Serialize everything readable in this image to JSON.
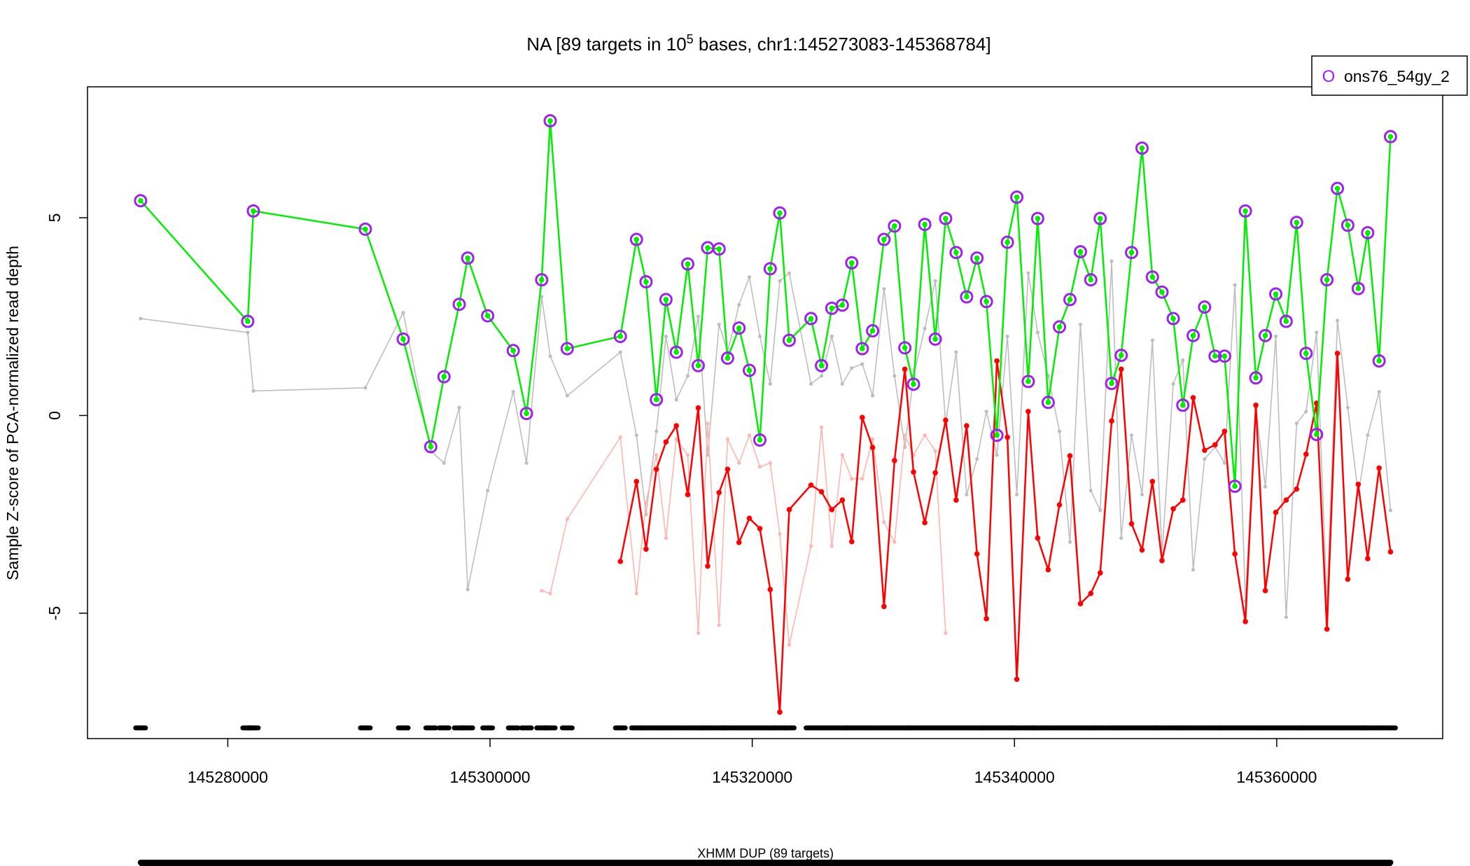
{
  "chart_data": {
    "type": "line",
    "title_prefix": "NA [89 targets in 10",
    "title_exponent": "5",
    "title_suffix": " bases, chr1:145273083-145368784]",
    "y_label": "Sample Z-score of PCA-normalized read depth",
    "x": [
      145273350,
      145281520,
      145281950,
      145290490,
      145293380,
      145295480,
      145296490,
      145297650,
      145298300,
      145299820,
      145301770,
      145302780,
      145303940,
      145304590,
      145305890,
      145309940,
      145311170,
      145311900,
      145312690,
      145313420,
      145314210,
      145315080,
      145315880,
      145316600,
      145317470,
      145318120,
      145318990,
      145319780,
      145320580,
      145321370,
      145322100,
      145322820,
      145324480,
      145325280,
      145326070,
      145326870,
      145327590,
      145328390,
      145329180,
      145330050,
      145330850,
      145331640,
      145332300,
      145333160,
      145333960,
      145334750,
      145335550,
      145336350,
      145337140,
      145337860,
      145338660,
      145339460,
      145340180,
      145341050,
      145341770,
      145342570,
      145343430,
      145344230,
      145345030,
      145345820,
      145346540,
      145347410,
      145348140,
      145348930,
      145349730,
      145350520,
      145351250,
      145352110,
      145352840,
      145353630,
      145354500,
      145355300,
      145356020,
      145356810,
      145357610,
      145358410,
      145359130,
      145359930,
      145360720,
      145361520,
      145362240,
      145363040,
      145363830,
      145364630,
      145365420,
      145366220,
      145366940,
      145367810,
      145368680
    ],
    "series": [
      {
        "color": "#bebebe",
        "values": [
          2.45,
          2.1,
          0.62,
          0.7,
          2.6,
          -0.9,
          -1.2,
          0.2,
          -4.4,
          -1.9,
          0.6,
          -1.2,
          3.0,
          1.5,
          0.5,
          1.6,
          -0.5,
          -2.5,
          -0.4,
          2.0,
          0.4,
          1.0,
          2.5,
          -1.0,
          2.3,
          1.6,
          2.8,
          3.5,
          2.0,
          0.8,
          3.4,
          3.6,
          0.8,
          1.0,
          2.0,
          0.8,
          1.2,
          1.3,
          0.5,
          3.2,
          1.0,
          -0.8,
          1.0,
          2.2,
          3.4,
          -0.2,
          1.6,
          -2.0,
          -1.1,
          0.1,
          -1.0,
          2.0,
          -2.0,
          3.6,
          2.1,
          1.0,
          -0.4,
          -3.2,
          2.3,
          -1.9,
          -2.4,
          3.9,
          -3.1,
          -0.5,
          -2.0,
          1.9,
          -3.5,
          0.8,
          1.4,
          -3.9,
          -1.1,
          -0.8,
          -1.2,
          3.3,
          -4.7,
          0.2,
          -1.8,
          2.0,
          -5.1,
          -0.2,
          0.1,
          2.1,
          -4.7,
          2.4,
          0.2,
          -2.0,
          -0.5,
          0.6,
          -2.4
        ]
      },
      {
        "color": "#ffb6b0",
        "values": [
          null,
          null,
          null,
          null,
          null,
          null,
          null,
          null,
          null,
          null,
          null,
          null,
          -4.43,
          -4.5,
          -2.62,
          -0.55,
          -4.5,
          -2.2,
          -1.0,
          -3.1,
          -0.6,
          -1.0,
          -5.5,
          -0.2,
          -5.3,
          -0.6,
          -1.2,
          -0.5,
          -1.3,
          -1.2,
          -3.0,
          -5.8,
          -3.3,
          -0.3,
          -3.3,
          -1.0,
          -1.6,
          -1.6,
          -0.6,
          -2.7,
          -3.2,
          -0.5,
          -1.0,
          -0.5,
          -0.9,
          -5.5,
          null,
          null,
          null,
          null,
          null,
          null,
          null,
          null,
          null,
          null,
          null,
          null,
          null,
          null,
          null,
          null,
          null,
          null,
          null,
          null,
          null,
          null,
          null,
          null,
          null,
          null,
          null,
          null,
          null,
          null,
          null,
          null,
          null,
          null,
          null,
          null,
          null,
          null,
          null,
          null,
          null,
          null,
          null
        ]
      },
      {
        "color": "#ff0000",
        "values": [
          null,
          null,
          null,
          null,
          null,
          null,
          null,
          null,
          null,
          null,
          null,
          null,
          null,
          null,
          null,
          -3.69,
          -1.67,
          -3.38,
          -1.36,
          -0.67,
          -0.26,
          -2.0,
          0.19,
          -3.81,
          -1.95,
          -1.36,
          -3.21,
          -2.6,
          -2.86,
          -4.4,
          -7.5,
          -2.38,
          -1.76,
          -1.93,
          -2.38,
          -2.14,
          -3.19,
          -0.05,
          -0.81,
          -4.83,
          -1.14,
          1.17,
          -1.43,
          -2.71,
          -1.45,
          -0.12,
          -2.14,
          -0.26,
          -3.5,
          -5.14,
          1.38,
          -0.55,
          -6.67,
          0.1,
          -3.1,
          -3.9,
          -2.26,
          -1.02,
          -4.76,
          -4.5,
          -3.98,
          -0.14,
          1.17,
          -2.74,
          -3.4,
          -1.67,
          -3.67,
          -2.36,
          -2.14,
          0.45,
          -0.88,
          -0.74,
          -0.4,
          -3.5,
          -5.21,
          0.26,
          -4.43,
          -2.45,
          -2.14,
          -1.86,
          -0.98,
          0.31,
          -5.4,
          1.57,
          -4.14,
          -1.74,
          -3.62,
          -1.33,
          -3.45
        ]
      },
      {
        "color": "#00ee00",
        "highlight": true,
        "values": [
          5.43,
          2.38,
          5.17,
          4.71,
          1.93,
          -0.79,
          0.98,
          2.81,
          3.98,
          2.52,
          1.64,
          0.05,
          3.43,
          7.45,
          1.69,
          2.0,
          4.45,
          3.38,
          0.4,
          2.93,
          1.6,
          3.83,
          1.26,
          4.24,
          4.21,
          1.45,
          2.21,
          1.14,
          -0.62,
          3.71,
          5.12,
          1.9,
          2.45,
          1.26,
          2.71,
          2.79,
          3.86,
          1.69,
          2.14,
          4.45,
          4.79,
          1.71,
          0.79,
          4.83,
          1.93,
          4.98,
          4.12,
          3.0,
          3.98,
          2.88,
          -0.5,
          4.38,
          5.52,
          0.86,
          4.98,
          0.33,
          2.24,
          2.93,
          4.14,
          3.43,
          4.98,
          0.81,
          1.52,
          4.12,
          6.76,
          3.5,
          3.12,
          2.45,
          0.26,
          2.02,
          2.74,
          1.5,
          1.5,
          -1.79,
          5.17,
          0.95,
          2.02,
          3.07,
          2.38,
          4.88,
          1.57,
          -0.48,
          3.43,
          5.74,
          4.81,
          3.21,
          4.62,
          1.38,
          7.05
        ]
      }
    ],
    "highlight_color": "#a020f0",
    "legend": {
      "label": "ons76_54gy_2",
      "marker": "O",
      "position": "top-right"
    },
    "target_marker_y": -7.9,
    "region_label": "XHMM DUP (89 targets)",
    "xlim": [
      145269300,
      145372660
    ],
    "ylim": [
      -8.17,
      8.31
    ],
    "xticks": [
      145280000,
      145300000,
      145320000,
      145340000,
      145360000
    ],
    "yticks": [
      -5,
      0,
      5
    ]
  }
}
